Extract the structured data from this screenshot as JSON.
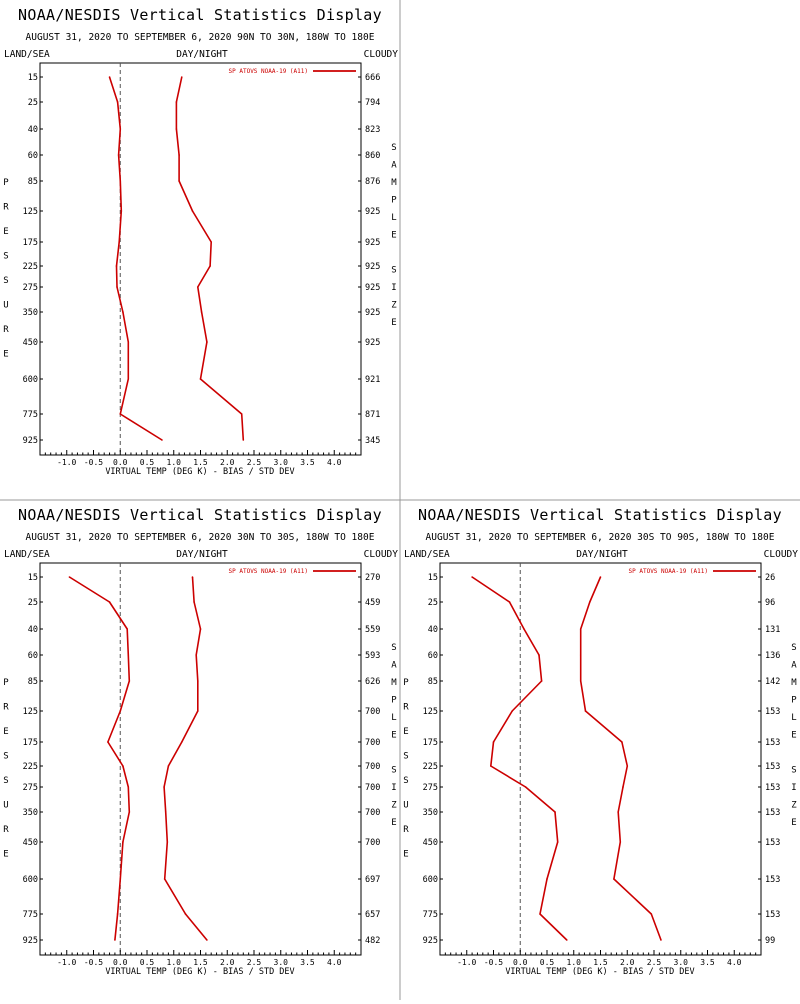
{
  "chart_data": [
    {
      "type": "line",
      "title": "NOAA/NESDIS Vertical Statistics Display",
      "subtitle": "AUGUST 31, 2020 TO SEPTEMBER 6, 2020 90N TO 30N, 180W TO 180E",
      "label_left": "LAND/SEA",
      "label_center": "DAY/NIGHT",
      "label_right": "CLOUDY",
      "legend": "SP ATOVS NOAA-19 (A11)",
      "xlabel": "VIRTUAL TEMP (DEG K) - BIAS / STD DEV",
      "ylabel": "PRESSURE",
      "y2label": "SAMPLE SIZE",
      "xlim": [
        -1.5,
        4.5
      ],
      "xticks": [
        "-1.0",
        "-0.5",
        "0.0",
        "0.5",
        "1.0",
        "1.5",
        "2.0",
        "2.5",
        "3.0",
        "3.5",
        "4.0"
      ],
      "pressure": [
        15,
        25,
        40,
        60,
        85,
        125,
        175,
        225,
        275,
        350,
        450,
        600,
        775,
        925
      ],
      "sample_size": [
        666,
        794,
        823,
        860,
        876,
        925,
        925,
        925,
        925,
        925,
        925,
        921,
        871,
        345
      ],
      "series": [
        {
          "label": "Bias",
          "values": [
            -0.2,
            -0.05,
            0.0,
            -0.03,
            0.0,
            0.02,
            -0.02,
            -0.07,
            -0.06,
            0.05,
            0.15,
            0.15,
            0.0,
            0.78
          ]
        },
        {
          "label": "Std Dev",
          "values": [
            1.15,
            1.05,
            1.05,
            1.1,
            1.1,
            1.35,
            1.7,
            1.68,
            1.45,
            1.52,
            1.62,
            1.5,
            2.27,
            2.3
          ]
        }
      ],
      "grid": false
    },
    {
      "type": "line",
      "title": "NOAA/NESDIS Vertical Statistics Display",
      "subtitle": "AUGUST 31, 2020 TO SEPTEMBER 6, 2020 30N TO 30S, 180W TO 180E",
      "label_left": "LAND/SEA",
      "label_center": "DAY/NIGHT",
      "label_right": "CLOUDY",
      "legend": "SP ATOVS NOAA-19 (A11)",
      "xlabel": "VIRTUAL TEMP (DEG K) - BIAS / STD DEV",
      "ylabel": "PRESSURE",
      "y2label": "SAMPLE SIZE",
      "xlim": [
        -1.5,
        4.5
      ],
      "xticks": [
        "-1.0",
        "-0.5",
        "0.0",
        "0.5",
        "1.0",
        "1.5",
        "2.0",
        "2.5",
        "3.0",
        "3.5",
        "4.0"
      ],
      "pressure": [
        15,
        25,
        40,
        60,
        85,
        125,
        175,
        225,
        275,
        350,
        450,
        600,
        775,
        925
      ],
      "sample_size": [
        270,
        459,
        559,
        593,
        626,
        700,
        700,
        700,
        700,
        700,
        700,
        697,
        657,
        482
      ],
      "series": [
        {
          "label": "Bias",
          "values": [
            -0.95,
            -0.2,
            0.13,
            0.15,
            0.17,
            0.0,
            -0.23,
            0.05,
            0.15,
            0.17,
            0.05,
            0.0,
            -0.05,
            -0.1
          ]
        },
        {
          "label": "Std Dev",
          "values": [
            1.35,
            1.38,
            1.5,
            1.42,
            1.45,
            1.45,
            1.15,
            0.9,
            0.82,
            0.85,
            0.88,
            0.83,
            1.22,
            1.62
          ]
        }
      ],
      "grid": false
    },
    {
      "type": "line",
      "title": "NOAA/NESDIS Vertical Statistics Display",
      "subtitle": "AUGUST 31, 2020 TO SEPTEMBER 6, 2020 30S TO 90S, 180W TO 180E",
      "label_left": "LAND/SEA",
      "label_center": "DAY/NIGHT",
      "label_right": "CLOUDY",
      "legend": "SP ATOVS NOAA-19 (A11)",
      "xlabel": "VIRTUAL TEMP (DEG K) - BIAS / STD DEV",
      "ylabel": "PRESSURE",
      "y2label": "SAMPLE SIZE",
      "xlim": [
        -1.5,
        4.5
      ],
      "xticks": [
        "-1.0",
        "-0.5",
        "0.0",
        "0.5",
        "1.0",
        "1.5",
        "2.0",
        "2.5",
        "3.0",
        "3.5",
        "4.0"
      ],
      "pressure": [
        15,
        25,
        40,
        60,
        85,
        125,
        175,
        225,
        275,
        350,
        450,
        600,
        775,
        925
      ],
      "sample_size": [
        26,
        96,
        131,
        136,
        142,
        153,
        153,
        153,
        153,
        153,
        153,
        153,
        153,
        99
      ],
      "series": [
        {
          "label": "Bias",
          "values": [
            -0.9,
            -0.2,
            0.07,
            0.35,
            0.4,
            -0.15,
            -0.5,
            -0.55,
            0.1,
            0.65,
            0.7,
            0.5,
            0.37,
            0.87
          ]
        },
        {
          "label": "Std Dev",
          "values": [
            1.5,
            1.3,
            1.13,
            1.13,
            1.13,
            1.22,
            1.9,
            2.0,
            1.92,
            1.83,
            1.87,
            1.75,
            2.45,
            2.63
          ]
        }
      ],
      "grid": false
    }
  ],
  "colors": {
    "line": "#cc0000",
    "divider": "#999999"
  }
}
